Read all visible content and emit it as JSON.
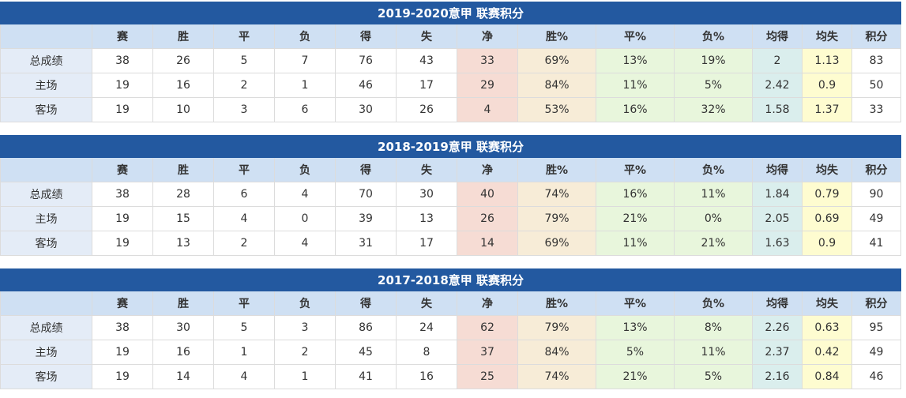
{
  "headers": [
    "",
    "赛",
    "胜",
    "平",
    "负",
    "得",
    "失",
    "净",
    "胜%",
    "平%",
    "负%",
    "均得",
    "均失",
    "积分"
  ],
  "tables": [
    {
      "title": "2019-2020意甲 联赛积分",
      "rows": [
        [
          "总成绩",
          "38",
          "26",
          "5",
          "7",
          "76",
          "43",
          "33",
          "69%",
          "13%",
          "19%",
          "2",
          "1.13",
          "83"
        ],
        [
          "主场",
          "19",
          "16",
          "2",
          "1",
          "46",
          "17",
          "29",
          "84%",
          "11%",
          "5%",
          "2.42",
          "0.9",
          "50"
        ],
        [
          "客场",
          "19",
          "10",
          "3",
          "6",
          "30",
          "26",
          "4",
          "53%",
          "16%",
          "32%",
          "1.58",
          "1.37",
          "33"
        ]
      ]
    },
    {
      "title": "2018-2019意甲 联赛积分",
      "rows": [
        [
          "总成绩",
          "38",
          "28",
          "6",
          "4",
          "70",
          "30",
          "40",
          "74%",
          "16%",
          "11%",
          "1.84",
          "0.79",
          "90"
        ],
        [
          "主场",
          "19",
          "15",
          "4",
          "0",
          "39",
          "13",
          "26",
          "79%",
          "21%",
          "0%",
          "2.05",
          "0.69",
          "49"
        ],
        [
          "客场",
          "19",
          "13",
          "2",
          "4",
          "31",
          "17",
          "14",
          "69%",
          "11%",
          "21%",
          "1.63",
          "0.9",
          "41"
        ]
      ]
    },
    {
      "title": "2017-2018意甲 联赛积分",
      "rows": [
        [
          "总成绩",
          "38",
          "30",
          "5",
          "3",
          "86",
          "24",
          "62",
          "79%",
          "13%",
          "8%",
          "2.26",
          "0.63",
          "95"
        ],
        [
          "主场",
          "19",
          "16",
          "1",
          "2",
          "45",
          "8",
          "37",
          "84%",
          "5%",
          "11%",
          "2.37",
          "0.42",
          "49"
        ],
        [
          "客场",
          "19",
          "14",
          "4",
          "1",
          "41",
          "16",
          "25",
          "74%",
          "21%",
          "5%",
          "2.16",
          "0.84",
          "46"
        ]
      ]
    }
  ]
}
